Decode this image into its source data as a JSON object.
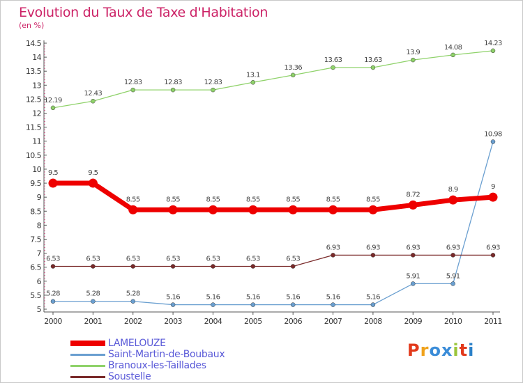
{
  "title": "Evolution du Taux de Taxe d'Habitation",
  "subtitle": "(en %)",
  "brand": "Proxiti",
  "brand_colors": [
    "#e23a1c",
    "#f0a21b",
    "#3a8cd8",
    "#3a8cd8",
    "#9ac53a",
    "#e23a1c",
    "#2a80c8"
  ],
  "chart_data": {
    "type": "line",
    "title": "Evolution du Taux de Taxe d'Habitation",
    "ylabel": "(en %)",
    "x": [
      2000,
      2001,
      2002,
      2003,
      2004,
      2005,
      2006,
      2007,
      2008,
      2009,
      2010,
      2011
    ],
    "ylim": [
      5,
      14.5
    ],
    "yticks": [
      "5",
      "5.5",
      "6",
      "6.5",
      "7",
      "7.5",
      "8",
      "8.5",
      "9",
      "9.5",
      "10",
      "10.5",
      "11",
      "11.5",
      "12",
      "12.5",
      "13",
      "13.5",
      "14",
      "14.5"
    ],
    "grid": false,
    "legend_position": "bottom-left",
    "series": [
      {
        "name": "LAMELOUZE",
        "color": "#ee0000",
        "highlight": true,
        "values": [
          9.5,
          9.5,
          8.55,
          8.55,
          8.55,
          8.55,
          8.55,
          8.55,
          8.55,
          8.72,
          8.9,
          9
        ],
        "labels": [
          "9.5",
          "9.5",
          "8.55",
          "8.55",
          "8.55",
          "8.55",
          "8.55",
          "8.55",
          "8.55",
          "8.72",
          "8.9",
          "9"
        ]
      },
      {
        "name": "Saint-Martin-de-Boubaux",
        "color": "#6a9fd0",
        "highlight": false,
        "values": [
          5.28,
          5.28,
          5.28,
          5.16,
          5.16,
          5.16,
          5.16,
          5.16,
          5.16,
          5.91,
          5.91,
          10.98
        ],
        "labels": [
          "5.28",
          "5.28",
          "5.28",
          "5.16",
          "5.16",
          "5.16",
          "5.16",
          "5.16",
          "5.16",
          "5.91",
          "5.91",
          "10.98"
        ]
      },
      {
        "name": "Branoux-les-Taillades",
        "color": "#8fd26a",
        "highlight": false,
        "values": [
          12.19,
          12.43,
          12.83,
          12.83,
          12.83,
          13.1,
          13.36,
          13.63,
          13.63,
          13.9,
          14.08,
          14.23
        ],
        "labels": [
          "12.19",
          "12.43",
          "12.83",
          "12.83",
          "12.83",
          "13.1",
          "13.36",
          "13.63",
          "13.63",
          "13.9",
          "14.08",
          "14.23"
        ]
      },
      {
        "name": "Soustelle",
        "color": "#7a2a2a",
        "highlight": false,
        "values": [
          6.53,
          6.53,
          6.53,
          6.53,
          6.53,
          6.53,
          6.53,
          6.93,
          6.93,
          6.93,
          6.93,
          6.93
        ],
        "labels": [
          "6.53",
          "6.53",
          "6.53",
          "6.53",
          "6.53",
          "6.53",
          "6.53",
          "6.93",
          "6.93",
          "6.93",
          "6.93",
          "6.93"
        ]
      }
    ]
  }
}
